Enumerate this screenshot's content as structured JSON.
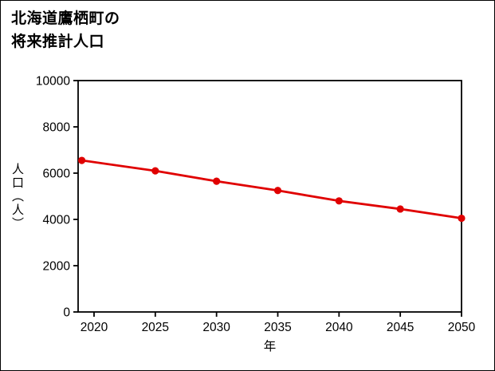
{
  "page": {
    "background": "#ffffff",
    "border_color": "#000000"
  },
  "title": {
    "line1": "北海道鷹栖町の",
    "line2": "将来推計人口"
  },
  "chart_data": {
    "type": "line",
    "title": "北海道鷹栖町の将来推計人口",
    "xlabel": "年",
    "ylabel": "人口（人）",
    "x": [
      2019,
      2025,
      2030,
      2035,
      2040,
      2045,
      2050
    ],
    "values": [
      6550,
      6100,
      5650,
      5250,
      4800,
      4450,
      4050
    ],
    "xlim": [
      2018.7,
      2050
    ],
    "ylim": [
      0,
      10000
    ],
    "x_ticks": [
      2020,
      2025,
      2030,
      2035,
      2040,
      2045,
      2050
    ],
    "y_ticks": [
      0,
      2000,
      4000,
      6000,
      8000,
      10000
    ],
    "line_color": "#e00000",
    "axis_color": "#000000",
    "marker": "circle",
    "grid": false,
    "legend": "none"
  }
}
